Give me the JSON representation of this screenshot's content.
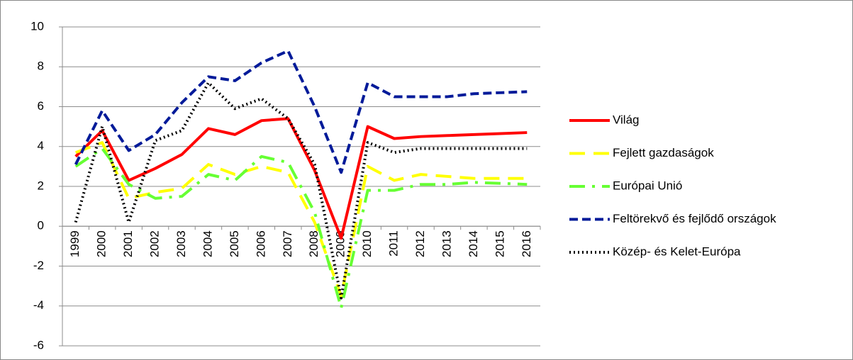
{
  "chart_data": {
    "type": "line",
    "categories": [
      "1999",
      "2000",
      "2001",
      "2002",
      "2003",
      "2004",
      "2005",
      "2006",
      "2007",
      "2008",
      "2009",
      "2010",
      "2011",
      "2012",
      "2013",
      "2014",
      "2015",
      "2016"
    ],
    "series": [
      {
        "name": "Világ",
        "color": "#ff0000",
        "style": "solid",
        "values": [
          3.5,
          4.8,
          2.3,
          2.9,
          3.6,
          4.9,
          4.6,
          5.3,
          5.4,
          2.8,
          -0.6,
          5.0,
          4.4,
          4.5,
          4.55,
          4.6,
          4.65,
          4.7
        ]
      },
      {
        "name": "Fejlett gazdaságok",
        "color": "#ffff00",
        "style": "longdash",
        "values": [
          3.7,
          4.2,
          1.4,
          1.7,
          1.9,
          3.1,
          2.6,
          3.0,
          2.7,
          0.2,
          -3.5,
          3.0,
          2.3,
          2.6,
          2.5,
          2.4,
          2.4,
          2.4
        ]
      },
      {
        "name": "Európai Unió",
        "color": "#66ff33",
        "style": "dashdot",
        "values": [
          3.0,
          3.9,
          2.1,
          1.4,
          1.5,
          2.6,
          2.3,
          3.5,
          3.2,
          0.7,
          -4.1,
          1.8,
          1.8,
          2.1,
          2.1,
          2.2,
          2.15,
          2.1
        ]
      },
      {
        "name": "Feltörekvő és fejlődő országok",
        "color": "#001a99",
        "style": "dash",
        "values": [
          3.1,
          5.8,
          3.8,
          4.6,
          6.2,
          7.5,
          7.3,
          8.2,
          8.8,
          6.0,
          2.7,
          7.2,
          6.5,
          6.5,
          6.5,
          6.65,
          6.7,
          6.75
        ]
      },
      {
        "name": "Közép- és Kelet-Európa",
        "color": "#000000",
        "style": "dot",
        "values": [
          0.2,
          5.0,
          0.2,
          4.3,
          4.8,
          7.2,
          5.9,
          6.4,
          5.4,
          3.1,
          -3.6,
          4.2,
          3.7,
          3.9,
          3.9,
          3.9,
          3.9,
          3.9
        ]
      }
    ],
    "ylim": [
      -6,
      10
    ],
    "yticks": [
      -6,
      -4,
      -2,
      0,
      2,
      4,
      6,
      8,
      10
    ],
    "grid": true,
    "legend": "right"
  }
}
